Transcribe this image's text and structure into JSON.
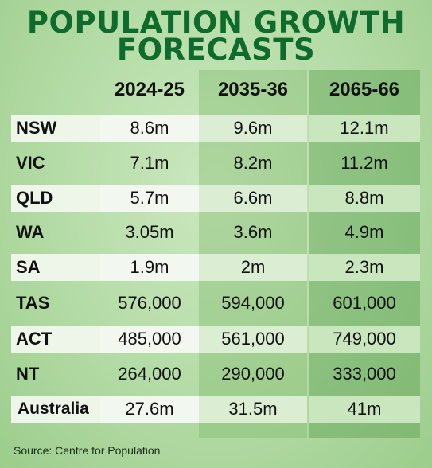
{
  "title_line1": "POPULATION GROWTH",
  "title_line2": "FORECASTS",
  "chart_data": {
    "type": "table",
    "columns": [
      "2024-25",
      "2035-36",
      "2065-66"
    ],
    "rows": [
      {
        "label": "NSW",
        "values": [
          "8.6m",
          "9.6m",
          "12.1m"
        ]
      },
      {
        "label": "VIC",
        "values": [
          "7.1m",
          "8.2m",
          "11.2m"
        ]
      },
      {
        "label": "QLD",
        "values": [
          "5.7m",
          "6.6m",
          "8.8m"
        ]
      },
      {
        "label": "WA",
        "values": [
          "3.05m",
          "3.6m",
          "4.9m"
        ]
      },
      {
        "label": "SA",
        "values": [
          "1.9m",
          "2m",
          "2.3m"
        ]
      },
      {
        "label": "TAS",
        "values": [
          "576,000",
          "594,000",
          "601,000"
        ]
      },
      {
        "label": "ACT",
        "values": [
          "485,000",
          "561,000",
          "749,000"
        ]
      },
      {
        "label": "NT",
        "values": [
          "264,000",
          "290,000",
          "333,000"
        ]
      },
      {
        "label": "Australia",
        "values": [
          "27.6m",
          "31.5m",
          "41m"
        ]
      }
    ]
  },
  "source": "Source: Centre for Population",
  "colors": {
    "title": "#0f6b2c",
    "background": "#b3dba5"
  }
}
